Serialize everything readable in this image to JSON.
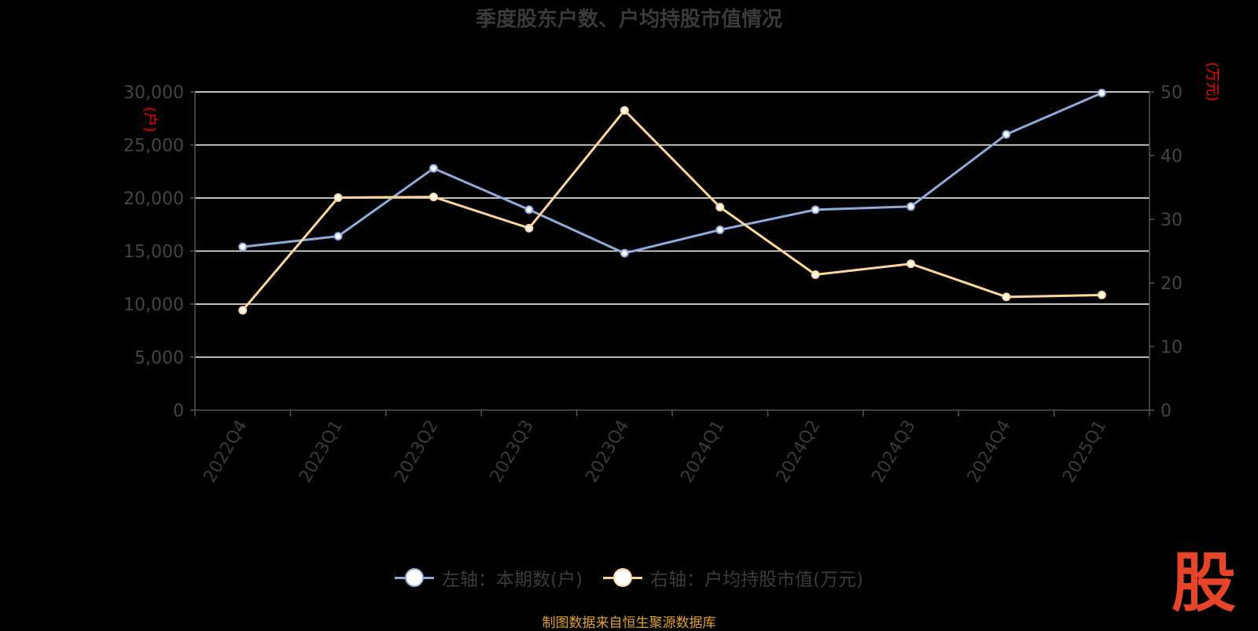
{
  "title": "季度股东户数、户均持股市值情况",
  "source": "制图数据来自恒生聚源数据库",
  "logo_text": "股",
  "colors": {
    "households": "#8faadc",
    "market_value": "#ffd699",
    "grid": "#ffffff",
    "axis": "#555555",
    "unit": "#ff0000"
  },
  "chart_data": {
    "type": "line",
    "categories": [
      "2022Q4",
      "2023Q1",
      "2023Q2",
      "2023Q3",
      "2023Q4",
      "2024Q1",
      "2024Q2",
      "2024Q3",
      "2024Q4",
      "2025Q1"
    ],
    "y_left": {
      "unit": "(户)",
      "ylim": [
        0,
        30000
      ],
      "ticks": [
        0,
        5000,
        10000,
        15000,
        20000,
        25000,
        30000
      ],
      "tick_labels": [
        "0",
        "5,000",
        "10,000",
        "15,000",
        "20,000",
        "25,000",
        "30,000"
      ]
    },
    "y_right": {
      "unit": "(万元)",
      "ylim": [
        0,
        50
      ],
      "ticks": [
        0,
        10,
        20,
        30,
        40,
        50
      ],
      "tick_labels": [
        "0",
        "10",
        "20",
        "30",
        "40",
        "50"
      ]
    },
    "grid": true,
    "legend_position": "bottom",
    "series": [
      {
        "name": "左轴：本期数(户)",
        "axis": "left",
        "color": "#8faadc",
        "values": [
          15400,
          16400,
          22800,
          18900,
          14800,
          17000,
          18900,
          19200,
          26000,
          29900
        ]
      },
      {
        "name": "右轴：户均持股市值(万元)",
        "axis": "right",
        "color": "#ffd699",
        "values": [
          15.7,
          33.4,
          33.5,
          28.6,
          47.1,
          31.9,
          21.3,
          23.0,
          17.8,
          18.1
        ]
      }
    ]
  }
}
